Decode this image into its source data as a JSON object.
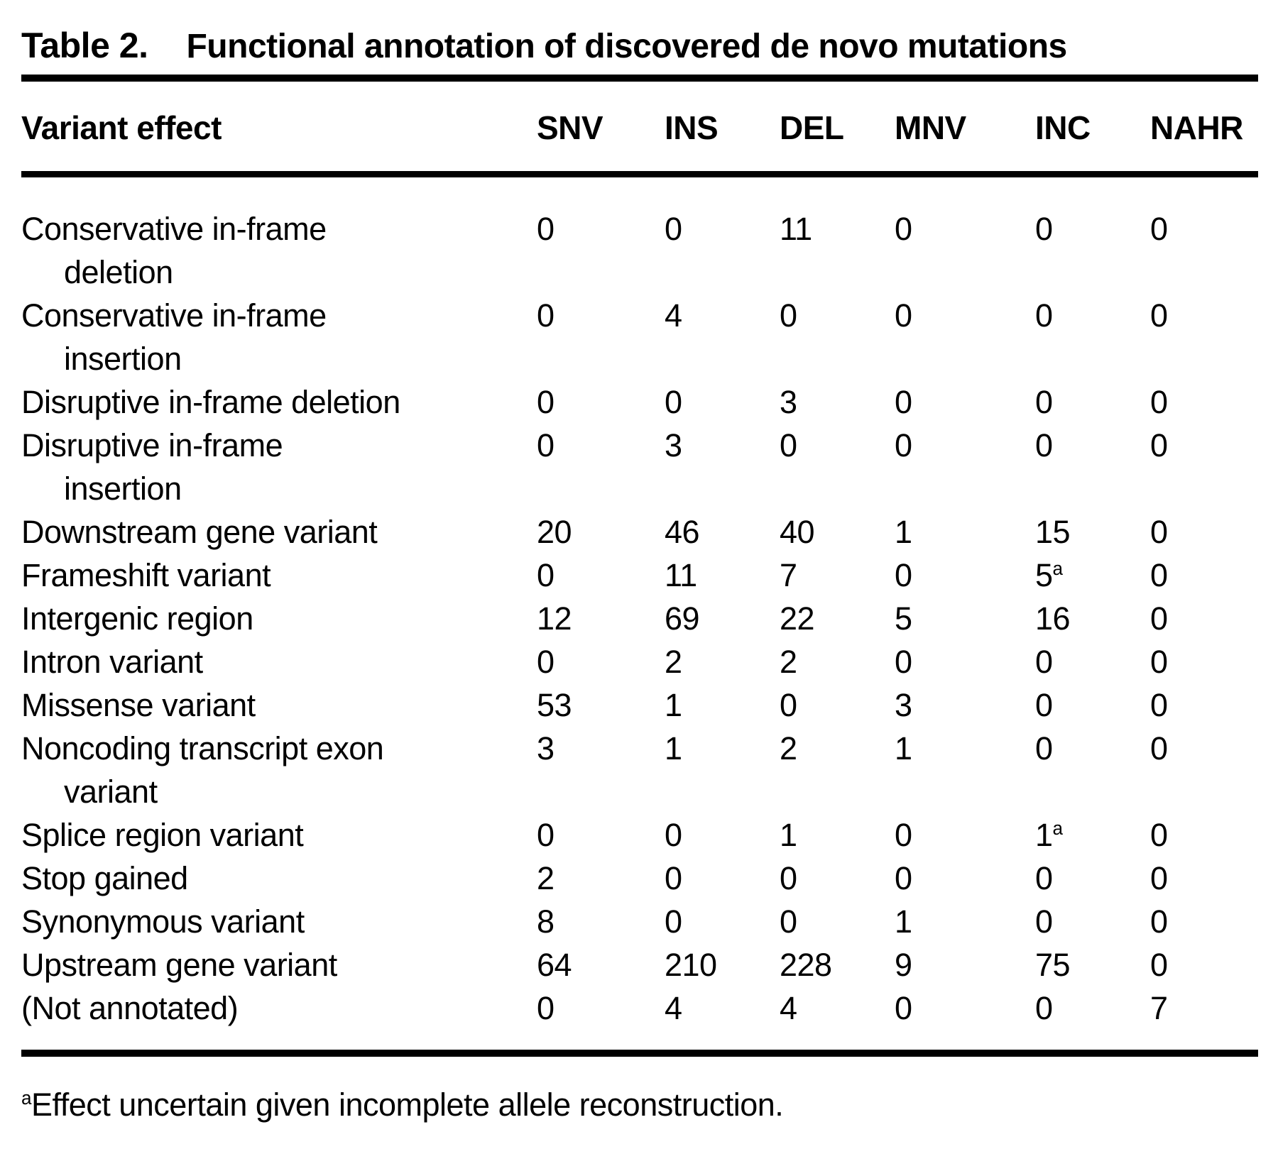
{
  "title": {
    "label": "Table 2.",
    "text": "Functional annotation of discovered de novo mutations"
  },
  "table": {
    "columns": [
      "Variant effect",
      "SNV",
      "INS",
      "DEL",
      "MNV",
      "INC",
      "NAHR"
    ],
    "rows": [
      {
        "label": "Conservative in-frame\ndeletion",
        "values": [
          "0",
          "0",
          "11",
          "0",
          "0",
          "0"
        ]
      },
      {
        "label": "Conservative in-frame\ninsertion",
        "values": [
          "0",
          "4",
          "0",
          "0",
          "0",
          "0"
        ]
      },
      {
        "label": "Disruptive in-frame deletion",
        "values": [
          "0",
          "0",
          "3",
          "0",
          "0",
          "0"
        ]
      },
      {
        "label": "Disruptive in-frame\ninsertion",
        "values": [
          "0",
          "3",
          "0",
          "0",
          "0",
          "0"
        ]
      },
      {
        "label": "Downstream gene variant",
        "values": [
          "20",
          "46",
          "40",
          "1",
          "15",
          "0"
        ]
      },
      {
        "label": "Frameshift variant",
        "values": [
          "0",
          "11",
          "7",
          "0",
          {
            "value": "5",
            "sup": "a"
          },
          "0"
        ]
      },
      {
        "label": "Intergenic region",
        "values": [
          "12",
          "69",
          "22",
          "5",
          "16",
          "0"
        ]
      },
      {
        "label": "Intron variant",
        "values": [
          "0",
          "2",
          "2",
          "0",
          "0",
          "0"
        ]
      },
      {
        "label": "Missense variant",
        "values": [
          "53",
          "1",
          "0",
          "3",
          "0",
          "0"
        ]
      },
      {
        "label": "Noncoding transcript exon\nvariant",
        "values": [
          "3",
          "1",
          "2",
          "1",
          "0",
          "0"
        ]
      },
      {
        "label": "Splice region variant",
        "values": [
          "0",
          "0",
          "1",
          "0",
          {
            "value": "1",
            "sup": "a"
          },
          "0"
        ]
      },
      {
        "label": "Stop gained",
        "values": [
          "2",
          "0",
          "0",
          "0",
          "0",
          "0"
        ]
      },
      {
        "label": "Synonymous variant",
        "values": [
          "8",
          "0",
          "0",
          "1",
          "0",
          "0"
        ]
      },
      {
        "label": "Upstream gene variant",
        "values": [
          "64",
          "210",
          "228",
          "9",
          "75",
          "0"
        ]
      },
      {
        "label": "(Not annotated)",
        "values": [
          "0",
          "4",
          "4",
          "0",
          "0",
          "7"
        ]
      }
    ]
  },
  "footnote": {
    "sup": "a",
    "text": "Effect uncertain given incomplete allele reconstruction."
  }
}
